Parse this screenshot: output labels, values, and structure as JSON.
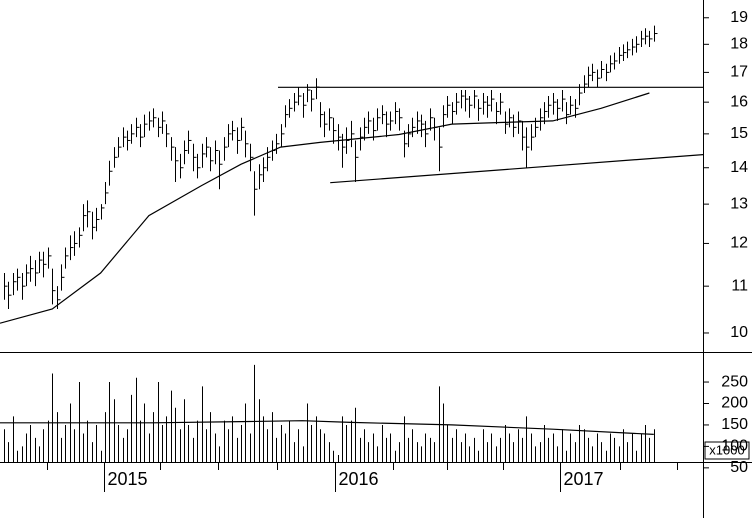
{
  "chart_data": [
    {
      "type": "ohlc",
      "log_scale": true,
      "color": "#000000",
      "xlim": [
        -0.9,
        159.2
      ],
      "ylim": [
        9.62,
        19.7
      ],
      "yticks": [
        10,
        11,
        12,
        13,
        14,
        15,
        16,
        17,
        18,
        19
      ],
      "xticks": [
        {
          "value": 22.8,
          "label": "2015"
        },
        {
          "value": 75.4,
          "label": "2016"
        },
        {
          "value": 126.6,
          "label": "2017"
        }
      ],
      "xminor_ticks": [
        9.8,
        35.5,
        48.7,
        62.2,
        88.6,
        101,
        113.7,
        140.3,
        153.3
      ],
      "high": [
        11.3,
        11.1,
        11.3,
        11.4,
        11.3,
        11.5,
        11.7,
        11.6,
        11.8,
        11.8,
        11.9,
        11.4,
        11.0,
        11.5,
        11.9,
        12.2,
        12.3,
        12.4,
        13.0,
        13.1,
        12.8,
        12.9,
        13.0,
        13.6,
        14.2,
        14.6,
        14.9,
        15.2,
        15.1,
        15.3,
        15.5,
        15.3,
        15.6,
        15.7,
        15.8,
        15.5,
        15.7,
        15.3,
        14.9,
        14.6,
        14.4,
        14.8,
        15.1,
        14.7,
        14.4,
        14.7,
        14.9,
        14.6,
        14.8,
        14.5,
        14.9,
        15.3,
        15.4,
        15.2,
        15.5,
        15.1,
        14.7,
        13.9,
        14.1,
        14.3,
        14.6,
        14.8,
        15.0,
        15.3,
        15.9,
        16.1,
        16.3,
        16.5,
        16.3,
        16.6,
        16.4,
        16.8,
        16.0,
        15.7,
        15.8,
        15.5,
        15.3,
        15.0,
        15.2,
        15.4,
        14.8,
        15.2,
        15.5,
        15.7,
        15.5,
        15.8,
        15.9,
        15.7,
        15.7,
        16.0,
        15.8,
        15.1,
        15.3,
        15.5,
        15.7,
        15.6,
        15.4,
        15.8,
        15.5,
        15.2,
        15.9,
        16.2,
        16.0,
        16.3,
        16.4,
        16.4,
        16.2,
        16.4,
        16.1,
        16.3,
        16.2,
        16.4,
        16.0,
        16.3,
        15.7,
        15.8,
        15.6,
        15.7,
        15.4,
        15.2,
        15.3,
        15.5,
        15.8,
        16.0,
        16.2,
        16.3,
        16.1,
        16.4,
        16.0,
        16.2,
        16.1,
        16.6,
        16.9,
        17.2,
        17.3,
        17.1,
        17.4,
        17.3,
        17.6,
        17.7,
        17.9,
        18.0,
        18.1,
        18.2,
        18.3,
        18.5,
        18.6,
        18.5,
        18.7
      ],
      "low": [
        10.7,
        10.5,
        10.8,
        10.9,
        10.7,
        11.0,
        11.1,
        11.0,
        11.3,
        11.2,
        11.4,
        10.6,
        10.5,
        10.9,
        11.4,
        11.6,
        11.7,
        11.9,
        12.3,
        12.4,
        12.1,
        12.3,
        12.6,
        13.0,
        13.5,
        14.0,
        14.3,
        14.6,
        14.5,
        14.7,
        14.9,
        14.6,
        14.9,
        15.1,
        15.2,
        14.9,
        15.0,
        14.6,
        14.2,
        13.6,
        13.7,
        14.1,
        14.4,
        13.9,
        13.7,
        14.0,
        14.3,
        13.9,
        14.1,
        13.4,
        14.2,
        14.6,
        14.8,
        14.4,
        14.8,
        14.3,
        13.9,
        12.7,
        13.4,
        13.6,
        13.9,
        14.2,
        14.4,
        14.6,
        15.2,
        15.5,
        15.7,
        15.9,
        15.5,
        16.0,
        15.7,
        16.1,
        15.2,
        14.9,
        15.1,
        14.7,
        14.5,
        14.0,
        14.4,
        14.6,
        13.6,
        14.5,
        14.8,
        15.0,
        14.8,
        15.1,
        15.3,
        14.9,
        15.1,
        15.3,
        15.1,
        14.3,
        14.6,
        14.9,
        15.0,
        14.9,
        14.6,
        15.1,
        14.8,
        13.9,
        15.2,
        15.5,
        15.3,
        15.6,
        15.8,
        15.7,
        15.5,
        15.8,
        15.4,
        15.6,
        15.5,
        15.7,
        15.3,
        15.6,
        15.0,
        15.2,
        14.9,
        15.0,
        14.5,
        14.0,
        14.5,
        14.9,
        15.1,
        15.3,
        15.5,
        15.6,
        15.4,
        15.7,
        15.3,
        15.6,
        15.5,
        15.9,
        16.3,
        16.5,
        16.7,
        16.5,
        16.8,
        16.7,
        17.0,
        17.1,
        17.3,
        17.4,
        17.5,
        17.6,
        17.7,
        17.9,
        18.0,
        17.9,
        18.1
      ],
      "close": [
        11.0,
        10.8,
        11.1,
        11.2,
        11.0,
        11.3,
        11.4,
        11.3,
        11.6,
        11.5,
        11.7,
        10.9,
        10.7,
        11.2,
        11.7,
        11.9,
        12.0,
        12.2,
        12.7,
        12.8,
        12.4,
        12.6,
        12.9,
        13.3,
        13.9,
        14.3,
        14.6,
        14.9,
        14.8,
        15.0,
        15.2,
        14.9,
        15.3,
        15.4,
        15.5,
        15.2,
        15.4,
        15.0,
        14.6,
        14.2,
        14.0,
        14.5,
        14.8,
        14.3,
        14.0,
        14.4,
        14.6,
        14.2,
        14.5,
        14.1,
        14.6,
        15.0,
        15.1,
        14.8,
        15.2,
        14.7,
        14.3,
        13.4,
        13.8,
        14.0,
        14.3,
        14.5,
        14.7,
        15.0,
        15.6,
        15.8,
        16.0,
        16.2,
        15.9,
        16.4,
        16.1,
        16.5,
        15.6,
        15.3,
        15.5,
        15.1,
        14.9,
        14.6,
        14.8,
        15.0,
        14.3,
        14.9,
        15.2,
        15.4,
        15.1,
        15.5,
        15.6,
        15.3,
        15.4,
        15.7,
        15.5,
        14.7,
        15.0,
        15.2,
        15.4,
        15.3,
        15.0,
        15.5,
        15.2,
        14.6,
        15.6,
        15.9,
        15.7,
        16.0,
        16.2,
        16.1,
        15.9,
        16.2,
        15.8,
        16.0,
        15.9,
        16.1,
        15.7,
        16.0,
        15.3,
        15.5,
        15.2,
        15.4,
        14.9,
        14.6,
        14.9,
        15.2,
        15.5,
        15.7,
        15.9,
        16.0,
        15.8,
        16.1,
        15.6,
        15.9,
        15.8,
        16.3,
        16.6,
        16.9,
        17.0,
        16.8,
        17.1,
        17.0,
        17.3,
        17.4,
        17.6,
        17.7,
        17.8,
        17.9,
        18.0,
        18.2,
        18.3,
        18.2,
        18.4
      ],
      "ma": {
        "x": [
          -0.9,
          11,
          22,
          33,
          45,
          54,
          63,
          72,
          90,
          102,
          113,
          125,
          136,
          147
        ],
        "values": [
          10.2,
          10.5,
          11.3,
          12.7,
          13.5,
          14.1,
          14.6,
          14.74,
          14.98,
          15.3,
          15.35,
          15.4,
          15.8,
          16.3
        ]
      },
      "lines": [
        {
          "x": [
            62.4,
            159.2
          ],
          "values": [
            16.49,
            16.49
          ]
        },
        {
          "x": [
            74.3,
            159.2
          ],
          "values": [
            13.58,
            14.38
          ]
        }
      ]
    },
    {
      "type": "volume",
      "color": "#000000",
      "unit_label": "x1000",
      "xlim": [
        -0.9,
        159.2
      ],
      "ylim": [
        45,
        320
      ],
      "yticks": [
        50,
        100,
        150,
        200,
        250
      ],
      "values": [
        140,
        110,
        170,
        90,
        100,
        130,
        150,
        120,
        100,
        140,
        160,
        270,
        180,
        120,
        150,
        200,
        140,
        250,
        130,
        160,
        110,
        150,
        90,
        180,
        250,
        210,
        150,
        120,
        140,
        220,
        260,
        160,
        200,
        130,
        180,
        250,
        150,
        170,
        230,
        190,
        140,
        210,
        150,
        120,
        160,
        240,
        140,
        180,
        130,
        100,
        160,
        140,
        170,
        120,
        150,
        200,
        130,
        290,
        210,
        170,
        140,
        180,
        120,
        150,
        130,
        160,
        110,
        140,
        100,
        200,
        150,
        170,
        140,
        130,
        110,
        90,
        80,
        170,
        150,
        160,
        190,
        120,
        140,
        110,
        130,
        100,
        150,
        120,
        130,
        90,
        110,
        170,
        120,
        140,
        110,
        100,
        130,
        120,
        110,
        240,
        200,
        150,
        120,
        140,
        110,
        130,
        100,
        120,
        90,
        140,
        110,
        130,
        100,
        120,
        150,
        130,
        110,
        140,
        120,
        170,
        130,
        100,
        110,
        150,
        120,
        130,
        100,
        140,
        90,
        130,
        110,
        150,
        140,
        120,
        100,
        130,
        110,
        90,
        130,
        120,
        100,
        140,
        110,
        130,
        90,
        130,
        150,
        120,
        140
      ],
      "ma": {
        "x": [
          -0.9,
          34,
          56,
          68,
          79,
          102,
          125,
          148
        ],
        "values": [
          155,
          155,
          158,
          160,
          156,
          150,
          140,
          128
        ]
      }
    }
  ]
}
